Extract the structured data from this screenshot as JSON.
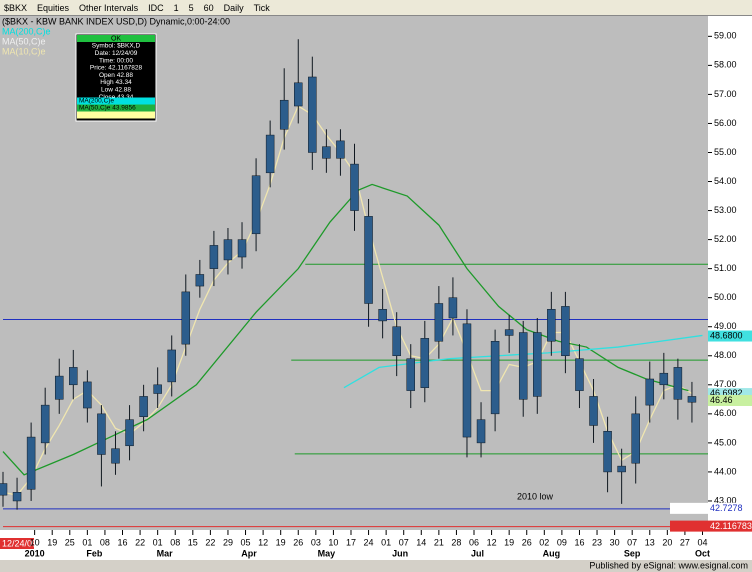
{
  "toolbar": {
    "items": [
      "$BKX",
      "Equities",
      "Other Intervals",
      "IDC",
      "1",
      "5",
      "60",
      "Daily",
      "Tick"
    ]
  },
  "legend": {
    "items": [
      {
        "text": "MA(200,C)e",
        "color": "#00e0e0"
      },
      {
        "text": "MA(50,C)e",
        "color": "#f0f0f0"
      },
      {
        "text": "MA(10,C)e",
        "color": "#f0e6b0"
      }
    ]
  },
  "data_window": {
    "header": "OK",
    "rows": [
      "Symbol: $BKX,D",
      "Date: 12/24/09",
      "Time: 00:00",
      "Price: 42.1167828",
      "Open 42.88",
      "High 43.34",
      "Low 42.88",
      "Close 43.34"
    ],
    "ma_rows": [
      {
        "text": "MA(200,C)e",
        "color": "#00e0e0"
      },
      {
        "text": "MA(50,C)e 43.9856",
        "color": "#20b040"
      },
      {
        "text": "",
        "color": "#ffffa0"
      }
    ]
  },
  "footer": {
    "start_date": "12/24/09",
    "published": "Published by eSignal: www.esignal.com"
  },
  "chart_data": {
    "type": "candlestick",
    "title": "($BKX - KBW BANK INDEX USD,D) Dynamic,0:00-24:00",
    "candle_color": "#2c5d8c",
    "wick_color": "#101820",
    "x": [
      0,
      4,
      8,
      12,
      16,
      20,
      24,
      28,
      32,
      36,
      40,
      44,
      48,
      52,
      56,
      60,
      64,
      68,
      72,
      76,
      80,
      84,
      88,
      92,
      96,
      100,
      104,
      108,
      112,
      116,
      120,
      124,
      128,
      132,
      136,
      140,
      144,
      148,
      152,
      156,
      160,
      164,
      168,
      172,
      176,
      180,
      184,
      188,
      192,
      196
    ],
    "open": [
      43.6,
      43.3,
      43.4,
      45.0,
      46.5,
      47.6,
      47.1,
      46.0,
      44.3,
      44.9,
      45.9,
      46.7,
      47.1,
      48.4,
      50.4,
      51.0,
      52.0,
      51.4,
      52.2,
      54.3,
      55.8,
      56.6,
      57.6,
      54.8,
      55.4,
      54.6,
      52.8,
      49.6,
      49.0,
      47.9,
      46.9,
      48.5,
      50.0,
      49.1,
      45.0,
      46.0,
      48.7,
      48.8,
      46.6,
      48.5,
      49.7,
      47.9,
      46.6,
      45.4,
      44.2,
      44.3,
      46.3,
      47.0,
      47.6,
      46.6
    ],
    "high": [
      44.0,
      43.8,
      45.7,
      46.9,
      47.9,
      48.2,
      47.5,
      46.3,
      45.4,
      46.3,
      47.0,
      47.6,
      48.7,
      50.8,
      51.3,
      52.3,
      52.4,
      52.6,
      54.8,
      56.1,
      57.9,
      58.9,
      58.3,
      55.8,
      55.8,
      55.3,
      53.4,
      50.3,
      49.5,
      48.4,
      49.2,
      50.4,
      50.7,
      49.6,
      46.4,
      48.9,
      49.4,
      49.2,
      49.3,
      50.2,
      50.2,
      48.4,
      47.2,
      45.9,
      44.8,
      46.6,
      47.8,
      48.1,
      47.9,
      47.1
    ],
    "low": [
      42.8,
      42.7,
      43.0,
      44.6,
      46.0,
      46.5,
      45.7,
      43.5,
      43.9,
      44.4,
      45.4,
      46.2,
      46.6,
      48.0,
      50.0,
      50.4,
      50.8,
      51.0,
      51.6,
      53.8,
      55.1,
      56.0,
      54.4,
      54.3,
      54.2,
      52.3,
      49.0,
      48.6,
      47.3,
      46.2,
      46.4,
      47.9,
      48.7,
      44.5,
      44.5,
      45.4,
      48.1,
      45.9,
      46.0,
      48.0,
      47.4,
      46.2,
      45.0,
      43.3,
      42.9,
      43.6,
      45.7,
      46.5,
      45.8,
      45.7
    ],
    "close": [
      43.2,
      43.0,
      45.2,
      46.3,
      47.3,
      47.0,
      46.2,
      44.6,
      44.8,
      45.8,
      46.6,
      47.0,
      48.2,
      50.2,
      50.8,
      51.8,
      51.3,
      52.0,
      54.2,
      55.6,
      56.8,
      57.4,
      55.0,
      55.2,
      54.8,
      53.0,
      49.8,
      49.2,
      48.0,
      46.8,
      48.6,
      49.8,
      49.3,
      45.2,
      45.8,
      48.5,
      48.9,
      46.5,
      48.8,
      49.6,
      48.0,
      46.8,
      45.6,
      44.0,
      44.0,
      46.0,
      47.2,
      47.4,
      46.5,
      46.4
    ],
    "series": [
      {
        "name": "MA(10,C)e",
        "color": "#f0e6b0",
        "x": [
          0,
          4,
          8,
          12,
          16,
          20,
          24,
          28,
          32,
          36,
          40,
          44,
          48,
          52,
          56,
          60,
          64,
          68,
          72,
          76,
          80,
          84,
          88,
          92,
          96,
          100,
          104,
          108,
          112,
          116,
          120,
          124,
          128,
          132,
          136,
          140,
          144,
          148,
          152,
          156,
          160,
          164,
          168,
          172,
          176,
          180,
          184,
          188,
          192,
          196
        ],
        "values": [
          43.3,
          43.2,
          43.8,
          44.8,
          45.6,
          46.5,
          46.8,
          46.3,
          45.5,
          45.3,
          45.7,
          46.2,
          47.0,
          48.3,
          49.6,
          50.6,
          51.2,
          51.6,
          52.6,
          53.9,
          55.5,
          56.6,
          56.3,
          55.6,
          55.0,
          54.3,
          52.4,
          50.7,
          49.0,
          48.0,
          47.9,
          48.4,
          49.3,
          48.1,
          46.8,
          46.8,
          47.7,
          47.6,
          47.8,
          48.8,
          48.8,
          47.8,
          46.8,
          45.4,
          44.4,
          44.7,
          45.8,
          46.8,
          47.0,
          46.7
        ]
      },
      {
        "name": "MA(50,C)e",
        "color": "#1e9a2a",
        "x": [
          0,
          6,
          20,
          41,
          55,
          72,
          84,
          93,
          101,
          105,
          115,
          124,
          132,
          141,
          149,
          158,
          166,
          175,
          183,
          195
        ],
        "values": [
          44.7,
          43.9,
          44.6,
          45.8,
          47.0,
          49.5,
          51.0,
          52.6,
          53.7,
          53.9,
          53.5,
          52.5,
          51.0,
          49.7,
          48.9,
          48.5,
          48.3,
          47.6,
          47.2,
          46.8
        ]
      },
      {
        "name": "MA(200,C)e",
        "color": "#30e0e0",
        "x": [
          97,
          107,
          127,
          155,
          175,
          199
        ],
        "values": [
          46.9,
          47.6,
          47.9,
          48.1,
          48.3,
          48.7
        ]
      }
    ],
    "hlines": [
      {
        "value": 51.15,
        "color": "#1e9a2a",
        "from": 86
      },
      {
        "value": 47.85,
        "color": "#1e9a2a",
        "from": 82
      },
      {
        "value": 44.62,
        "color": "#1e9a2a",
        "from": 83
      },
      {
        "value": 49.25,
        "color": "#2030c0",
        "from": 0
      },
      {
        "value": 42.7278,
        "color": "#2030c0",
        "from": 0,
        "label": "42.7278"
      },
      {
        "value": 42.116783,
        "color": "#e03030",
        "from": 0,
        "label": "42.116783"
      }
    ],
    "price_markers": [
      {
        "value": 48.68,
        "label": "48.6800",
        "color": "#40e0e0"
      },
      {
        "value": 46.6982,
        "label": "46.6982",
        "color": "#a0e8e8"
      },
      {
        "value": 46.46,
        "label": "46.46",
        "color": "#c8f0a0"
      }
    ],
    "annotation": "2010 low",
    "xlim": [
      0,
      200
    ],
    "ylim": [
      42.0,
      59.7
    ],
    "yticks": [
      {
        "value": 43,
        "label": "43.00"
      },
      {
        "value": 44,
        "label": "44.00"
      },
      {
        "value": 45,
        "label": "45.00"
      },
      {
        "value": 46,
        "label": "46.00"
      },
      {
        "value": 47,
        "label": "47.00"
      },
      {
        "value": 48,
        "label": "48.00"
      },
      {
        "value": 49,
        "label": "49.00"
      },
      {
        "value": 50,
        "label": "50.00"
      },
      {
        "value": 51,
        "label": "51.00"
      },
      {
        "value": 52,
        "label": "52.00"
      },
      {
        "value": 53,
        "label": "53.00"
      },
      {
        "value": 54,
        "label": "54.00"
      },
      {
        "value": 55,
        "label": "55.00"
      },
      {
        "value": 56,
        "label": "56.00"
      },
      {
        "value": 57,
        "label": "57.00"
      },
      {
        "value": 58,
        "label": "58.00"
      },
      {
        "value": 59,
        "label": "59.00"
      }
    ],
    "xticks": [
      {
        "value": 9,
        "label": "10"
      },
      {
        "value": 14,
        "label": "19"
      },
      {
        "value": 19,
        "label": "25"
      },
      {
        "value": 24,
        "label": "01"
      },
      {
        "value": 29,
        "label": "08"
      },
      {
        "value": 34,
        "label": "16"
      },
      {
        "value": 39,
        "label": "22"
      },
      {
        "value": 44,
        "label": "01"
      },
      {
        "value": 49,
        "label": "08"
      },
      {
        "value": 54,
        "label": "15"
      },
      {
        "value": 59,
        "label": "22"
      },
      {
        "value": 64,
        "label": "29"
      },
      {
        "value": 69,
        "label": "05"
      },
      {
        "value": 74,
        "label": "12"
      },
      {
        "value": 79,
        "label": "19"
      },
      {
        "value": 84,
        "label": "26"
      },
      {
        "value": 89,
        "label": "03"
      },
      {
        "value": 94,
        "label": "10"
      },
      {
        "value": 99,
        "label": "17"
      },
      {
        "value": 104,
        "label": "24"
      },
      {
        "value": 109,
        "label": "01"
      },
      {
        "value": 114,
        "label": "07"
      },
      {
        "value": 119,
        "label": "14"
      },
      {
        "value": 124,
        "label": "21"
      },
      {
        "value": 129,
        "label": "28"
      },
      {
        "value": 134,
        "label": "06"
      },
      {
        "value": 139,
        "label": "12"
      },
      {
        "value": 144,
        "label": "19"
      },
      {
        "value": 149,
        "label": "26"
      },
      {
        "value": 154,
        "label": "02"
      },
      {
        "value": 159,
        "label": "09"
      },
      {
        "value": 164,
        "label": "16"
      },
      {
        "value": 169,
        "label": "23"
      },
      {
        "value": 174,
        "label": "30"
      },
      {
        "value": 179,
        "label": "07"
      },
      {
        "value": 184,
        "label": "13"
      },
      {
        "value": 189,
        "label": "20"
      },
      {
        "value": 194,
        "label": "27"
      },
      {
        "value": 199,
        "label": "04"
      }
    ],
    "month_ticks": [
      {
        "value": 9,
        "label": "2010"
      },
      {
        "value": 26,
        "label": "Feb"
      },
      {
        "value": 46,
        "label": "Mar"
      },
      {
        "value": 70,
        "label": "Apr"
      },
      {
        "value": 92,
        "label": "May"
      },
      {
        "value": 113,
        "label": "Jun"
      },
      {
        "value": 135,
        "label": "Jul"
      },
      {
        "value": 156,
        "label": "Aug"
      },
      {
        "value": 179,
        "label": "Sep"
      },
      {
        "value": 199,
        "label": "Oct"
      }
    ]
  }
}
